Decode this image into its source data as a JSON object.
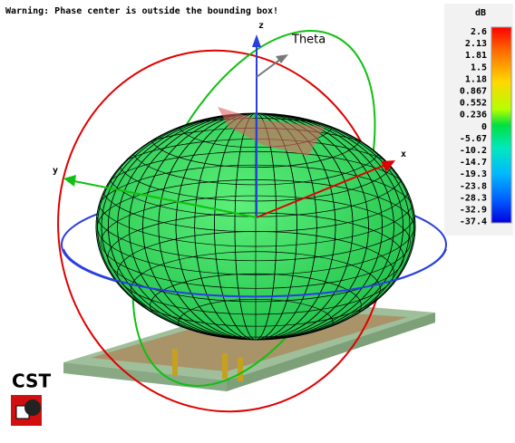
{
  "warning": "Warning: Phase center is outside the bounding box!",
  "axes": {
    "z": "z",
    "x": "x",
    "y": "y",
    "theta": "Theta"
  },
  "colorbar": {
    "unit": "dB",
    "labels": [
      "2.6",
      "2.13",
      "1.81",
      "1.5",
      "1.18",
      "0.867",
      "0.552",
      "0.236",
      "0",
      "-5.67",
      "-10.2",
      "-14.7",
      "-19.3",
      "-23.8",
      "-28.3",
      "-32.9",
      "-37.4"
    ]
  },
  "logo": "CST"
}
